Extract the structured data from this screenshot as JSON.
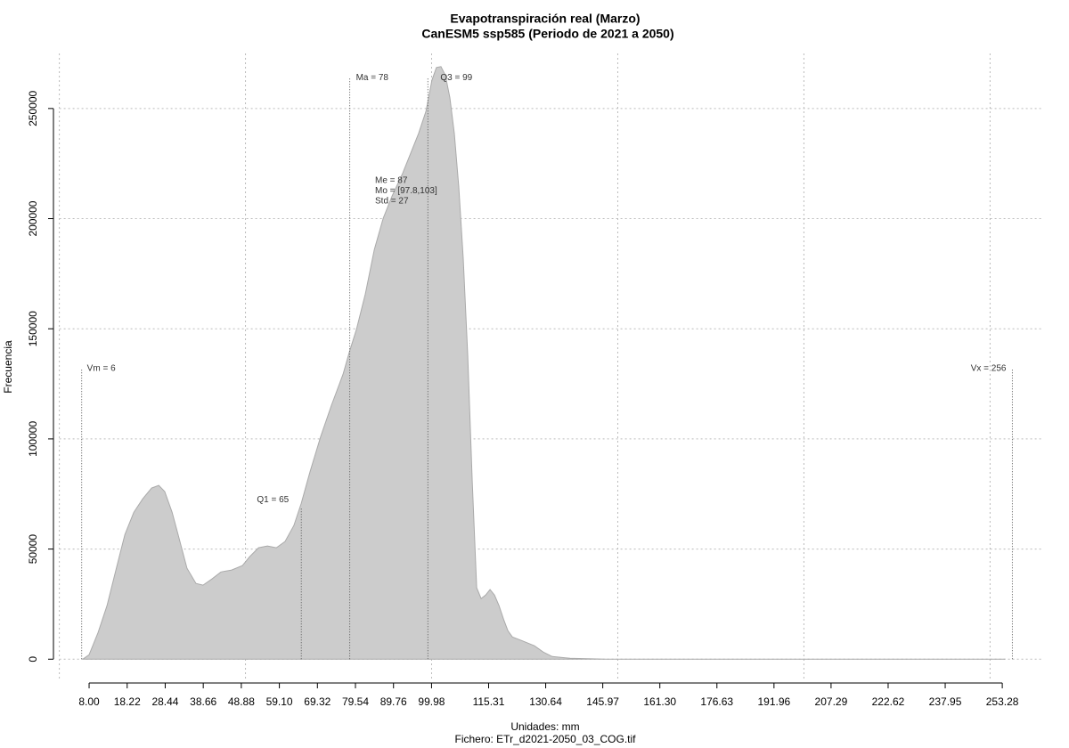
{
  "chart_data": {
    "type": "area",
    "title": "Evapotranspiración real (Marzo)",
    "subtitle": "CanESM5 ssp585 (Periodo de 2021 a 2050)",
    "x_label": "Unidades: mm",
    "file_label": "Fichero: ETr_d2021-2050_03_COG.tif",
    "y_label": "Frecuencia",
    "color": "#cccccc",
    "line_color": "#aaaaaa",
    "grid": true,
    "xlim": [
      0,
      264
    ],
    "ylim": [
      -10000,
      275000
    ],
    "xgrid": [
      0,
      50,
      100,
      150,
      200,
      250
    ],
    "xticks": [
      {
        "value": 8,
        "label": "8.00"
      },
      {
        "value": 18.22,
        "label": "18.22"
      },
      {
        "value": 28.44,
        "label": "28.44"
      },
      {
        "value": 38.66,
        "label": "38.66"
      },
      {
        "value": 48.88,
        "label": "48.88"
      },
      {
        "value": 59.1,
        "label": "59.10"
      },
      {
        "value": 69.32,
        "label": "69.32"
      },
      {
        "value": 79.54,
        "label": "79.54"
      },
      {
        "value": 89.76,
        "label": "89.76"
      },
      {
        "value": 99.98,
        "label": "99.98"
      },
      {
        "value": 115.31,
        "label": "115.31"
      },
      {
        "value": 130.64,
        "label": "130.64"
      },
      {
        "value": 145.97,
        "label": "145.97"
      },
      {
        "value": 161.3,
        "label": "161.30"
      },
      {
        "value": 176.63,
        "label": "176.63"
      },
      {
        "value": 191.96,
        "label": "191.96"
      },
      {
        "value": 207.29,
        "label": "207.29"
      },
      {
        "value": 222.62,
        "label": "222.62"
      },
      {
        "value": 237.95,
        "label": "237.95"
      },
      {
        "value": 253.28,
        "label": "253.28"
      }
    ],
    "yticks": [
      0,
      50000,
      100000,
      150000,
      200000,
      250000
    ],
    "x": [
      6.3,
      8,
      10.4,
      12.8,
      15.2,
      17.6,
      20,
      22.4,
      24.8,
      26.7,
      28.3,
      30.3,
      31.9,
      34.3,
      36.7,
      38.6,
      41,
      43.4,
      46.3,
      49.2,
      51.1,
      53.5,
      55.9,
      58.3,
      60.6,
      63,
      65,
      67.3,
      70.2,
      73.1,
      76.2,
      77.9,
      79.8,
      82.2,
      84.6,
      87,
      89.4,
      92.2,
      94.6,
      96.5,
      98.5,
      100.1,
      101.3,
      102.5,
      103.7,
      104.9,
      106.1,
      107.3,
      108.5,
      109.7,
      110.9,
      112.1,
      113.3,
      114.5,
      115.7,
      116.9,
      118.1,
      119.3,
      120.5,
      121.7,
      124.1,
      127.6,
      130,
      132.4,
      137.2,
      146.8,
      254
    ],
    "values": [
      0,
      2000,
      12100,
      24300,
      40500,
      56600,
      66700,
      72800,
      77700,
      78900,
      76100,
      66700,
      56600,
      41300,
      34400,
      33600,
      36400,
      39600,
      40500,
      42500,
      46500,
      50600,
      51400,
      50600,
      53400,
      60700,
      70800,
      84900,
      101100,
      115300,
      129400,
      139500,
      149700,
      165800,
      186000,
      200200,
      210300,
      220500,
      230600,
      238700,
      248800,
      262900,
      268600,
      269000,
      265000,
      254900,
      238700,
      214400,
      182000,
      137500,
      80900,
      32400,
      27500,
      29100,
      31600,
      29100,
      24300,
      18200,
      12900,
      10100,
      8500,
      6100,
      3200,
      1200,
      400,
      0,
      0
    ],
    "markers": [
      {
        "label": "Vm = 6",
        "x": 6,
        "top": 132000
      },
      {
        "label": "Q1 = 65",
        "x": 65,
        "top": 69000
      },
      {
        "label": "Ma = 78",
        "x": 78,
        "top": 264000
      },
      {
        "label": "Q3 = 99",
        "x": 99,
        "top": 264000
      },
      {
        "label": "Vx = 256",
        "x": 256,
        "top": 132000
      }
    ],
    "annotations": [
      "Me = 87",
      "Mo = [97.8,103]",
      "Std = 27"
    ]
  }
}
